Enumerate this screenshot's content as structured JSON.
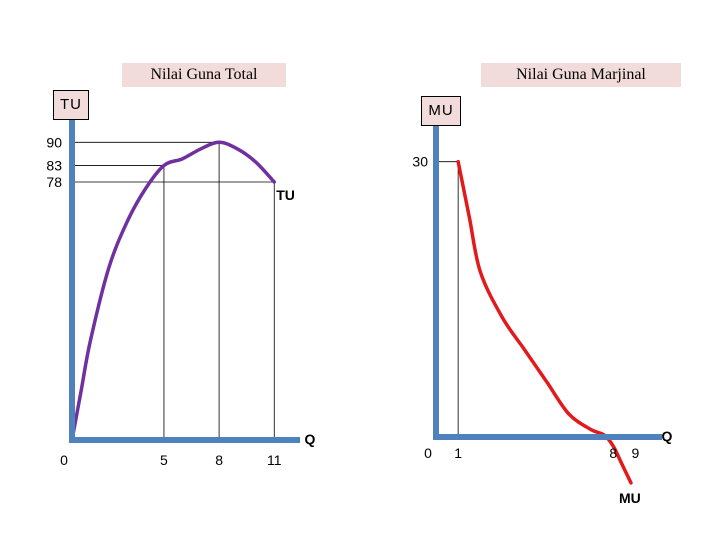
{
  "chart_data": [
    {
      "type": "line",
      "title": "Nilai Guna Total",
      "ylabel": "TU",
      "xlabel": "Q",
      "series": [
        {
          "name": "TU",
          "color": "#7030a0",
          "x": [
            0,
            0.5,
            1,
            2,
            3,
            4,
            5,
            6,
            7,
            8,
            9,
            10,
            11
          ],
          "y": [
            0,
            15,
            30,
            52,
            66,
            76,
            83,
            85,
            88,
            90,
            88,
            84,
            78
          ]
        }
      ],
      "x_ticks": [
        {
          "value": 0,
          "label": "0"
        },
        {
          "value": 5,
          "label": "5"
        },
        {
          "value": 8,
          "label": "8"
        },
        {
          "value": 11,
          "label": "11"
        }
      ],
      "y_ticks": [
        {
          "value": 90,
          "label": "90"
        },
        {
          "value": 83,
          "label": "83"
        },
        {
          "value": 78,
          "label": "78"
        }
      ],
      "guides": [
        {
          "x": 5,
          "y": 83
        },
        {
          "x": 8,
          "y": 90
        },
        {
          "x": 11,
          "y": 78
        }
      ],
      "xlim": [
        0,
        12.4
      ],
      "ylim": [
        0,
        104
      ],
      "axis_color": "#4f81bd",
      "grid": false
    },
    {
      "type": "line",
      "title": "Nilai Guna Marjinal",
      "ylabel": "MU",
      "xlabel": "Q",
      "series": [
        {
          "name": "MU",
          "color": "#e31a1c",
          "x": [
            1,
            1.5,
            2,
            3,
            4,
            5,
            6,
            7,
            7.6,
            8,
            8.4,
            8.8
          ],
          "y": [
            30,
            24,
            18,
            13,
            9.5,
            6,
            2.5,
            0.8,
            0.2,
            -1,
            -3,
            -5
          ]
        }
      ],
      "x_ticks": [
        {
          "value": 0,
          "label": "0"
        },
        {
          "value": 1,
          "label": "1"
        },
        {
          "value": 8,
          "label": "8"
        },
        {
          "value": 9,
          "label": "9"
        }
      ],
      "y_ticks": [
        {
          "value": 30,
          "label": "30"
        }
      ],
      "guides": [
        {
          "x": 1,
          "y": 30
        }
      ],
      "xlim": [
        0,
        10.2
      ],
      "ylim": [
        -5.8,
        34
      ],
      "axis_color": "#4f81bd",
      "grid": false
    }
  ]
}
